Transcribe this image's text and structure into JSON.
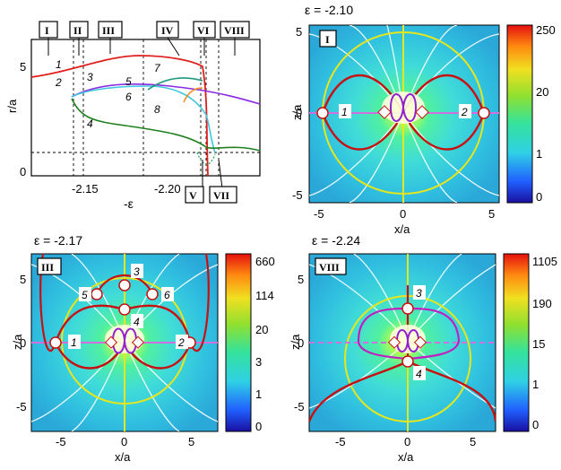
{
  "panel_a": {
    "roman_labels_top": [
      "I",
      "II",
      "III",
      "IV",
      "VI",
      "VIII"
    ],
    "roman_labels_bottom": [
      "V",
      "VII"
    ],
    "ylabel": "r/a",
    "xlabel": "-ε",
    "yticks": [
      "0",
      "5"
    ],
    "xticks": [
      "-2.15",
      "-2.20"
    ],
    "curve_labels": [
      "1",
      "2",
      "3",
      "4",
      "5",
      "6",
      "7",
      "8"
    ]
  },
  "panel_b": {
    "title": "ε = -2.10",
    "roman": "I",
    "xlabel": "x/a",
    "ylabel": "z/a",
    "xticks": [
      "-5",
      "0",
      "5"
    ],
    "yticks": [
      "5",
      "0",
      "-5"
    ],
    "colorbar_ticks": [
      "250",
      "20",
      "1",
      "0"
    ],
    "point_labels": [
      "1",
      "2"
    ]
  },
  "panel_c": {
    "title": "ε = -2.17",
    "roman": "III",
    "xlabel": "x/a",
    "ylabel": "z/a",
    "xticks": [
      "-5",
      "0",
      "5"
    ],
    "yticks": [
      "5",
      "0",
      "-5"
    ],
    "colorbar_ticks": [
      "660",
      "114",
      "20",
      "3",
      "1",
      "0"
    ],
    "point_labels": [
      "1",
      "2",
      "3",
      "4",
      "5",
      "6"
    ]
  },
  "panel_d": {
    "title": "ε = -2.24",
    "roman": "VIII",
    "xlabel": "x/a",
    "ylabel": "z/a",
    "xticks": [
      "-5",
      "0",
      "5"
    ],
    "yticks": [
      "5",
      "0",
      "-5"
    ],
    "colorbar_ticks": [
      "1105",
      "190",
      "15",
      "1",
      "0"
    ],
    "point_labels": [
      "3",
      "4"
    ]
  }
}
